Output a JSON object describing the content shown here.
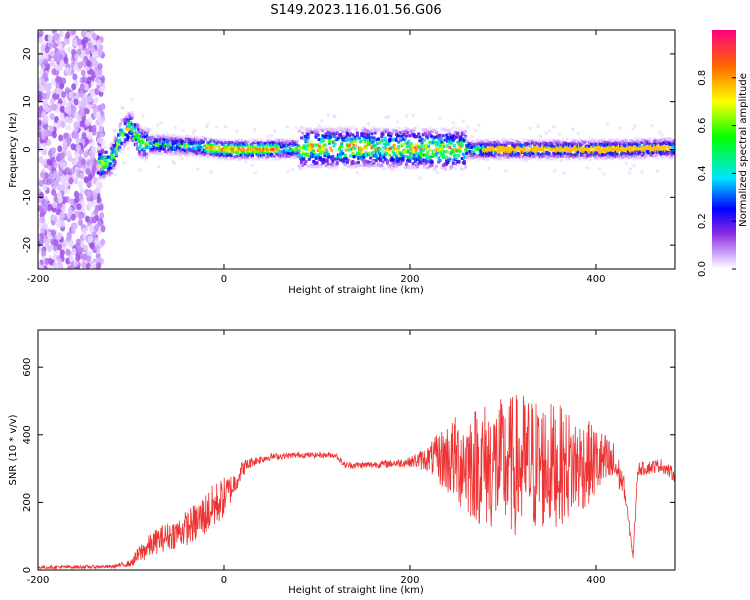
{
  "title": "S149.2023.116.01.56.G06",
  "colors": {
    "accent": "#ee3333",
    "colormap": [
      "#ffffff",
      "#d8b8ff",
      "#8a2be2",
      "#0000ff",
      "#00e5ff",
      "#00ff00",
      "#ffff00",
      "#ff6600",
      "#ff0080"
    ]
  },
  "chart_data": [
    {
      "type": "heatmap",
      "xlabel": "Height of straight line (km)",
      "ylabel": "Frequency (Hz)",
      "xlim": [
        -200,
        485
      ],
      "ylim": [
        -25,
        25
      ],
      "xticks": [
        -200,
        0,
        200,
        400
      ],
      "yticks": [
        -20,
        -10,
        0,
        10,
        20
      ],
      "colorbar": {
        "label": "Normalized spectral amplitude",
        "range": [
          0,
          1
        ],
        "ticks": [
          0.0,
          0.2,
          0.4,
          0.6,
          0.8
        ]
      },
      "ridge": {
        "x": [
          -130,
          -120,
          -110,
          -100,
          -95,
          -90,
          -80,
          -60,
          -40,
          -20,
          0,
          40,
          80,
          100,
          150,
          200,
          250,
          300,
          350,
          400,
          480
        ],
        "frequency": [
          -3,
          -2,
          3,
          5,
          3,
          1.5,
          1,
          1,
          0.8,
          0.5,
          0,
          0,
          0.2,
          0.3,
          0.4,
          0.2,
          0,
          0,
          0,
          0,
          0.3
        ]
      }
    },
    {
      "type": "line",
      "xlabel": "Height of straight line (km)",
      "ylabel": "SNR (10 * v/v)",
      "xlim": [
        -200,
        485
      ],
      "ylim": [
        0,
        710
      ],
      "xticks": [
        -200,
        0,
        200,
        400
      ],
      "yticks": [
        0,
        200,
        400,
        600
      ],
      "series": [
        {
          "color": "#ee3333",
          "envelope": {
            "x": [
              -200,
              -120,
              -100,
              -90,
              -70,
              -50,
              -30,
              -10,
              0,
              10,
              20,
              30,
              50,
              80,
              120,
              130,
              150,
              180,
              200,
              220,
              240,
              260,
              280,
              300,
              320,
              340,
              360,
              380,
              400,
              420,
              430,
              440,
              445,
              450,
              470,
              485
            ],
            "mean": [
              8,
              10,
              20,
              50,
              90,
              110,
              140,
              190,
              215,
              250,
              300,
              320,
              335,
              340,
              340,
              310,
              310,
              315,
              320,
              330,
              330,
              320,
              310,
              310,
              310,
              310,
              310,
              310,
              320,
              310,
              250,
              40,
              300,
              300,
              310,
              280
            ],
            "spread": [
              5,
              5,
              10,
              30,
              40,
              45,
              60,
              70,
              60,
              40,
              25,
              15,
              10,
              8,
              8,
              10,
              10,
              12,
              15,
              40,
              110,
              160,
              190,
              200,
              220,
              200,
              180,
              150,
              110,
              70,
              30,
              10,
              20,
              20,
              20,
              20
            ]
          }
        }
      ]
    }
  ]
}
